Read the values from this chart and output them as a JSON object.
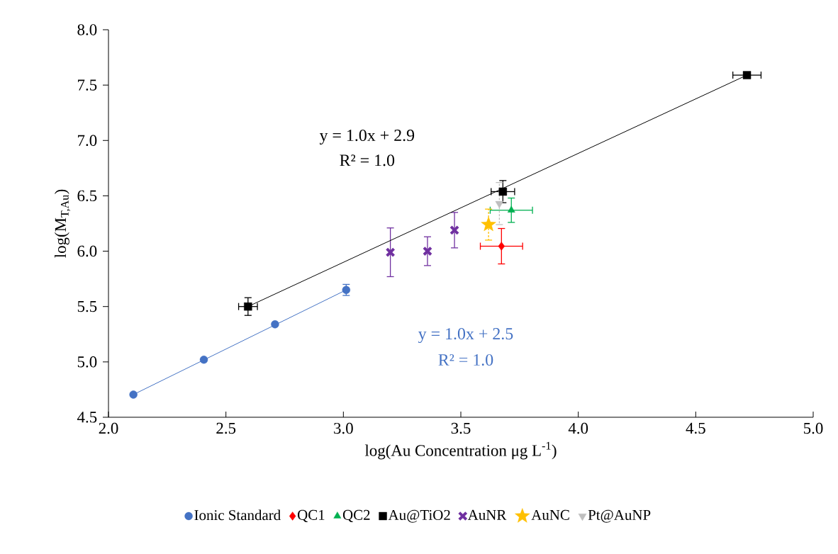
{
  "chart_data": {
    "type": "scatter",
    "xlabel": "log(Au Concentration μg L$^{-1}$)",
    "ylabel": "log(M$_{T,Au}$)",
    "xlim": [
      2.0,
      5.0
    ],
    "ylim": [
      4.5,
      8.0
    ],
    "xticks": [
      {
        "value": 2.0,
        "label": "2.0"
      },
      {
        "value": 2.5,
        "label": "2.5"
      },
      {
        "value": 3.0,
        "label": "3.0"
      },
      {
        "value": 3.5,
        "label": "3.5"
      },
      {
        "value": 4.0,
        "label": "4.0"
      },
      {
        "value": 4.5,
        "label": "4.5"
      },
      {
        "value": 5.0,
        "label": "5.0"
      }
    ],
    "yticks": [
      {
        "value": 4.5,
        "label": "4.5"
      },
      {
        "value": 5.0,
        "label": "5.0"
      },
      {
        "value": 5.5,
        "label": "5.5"
      },
      {
        "value": 6.0,
        "label": "6.0"
      },
      {
        "value": 6.5,
        "label": "6.5"
      },
      {
        "value": 7.0,
        "label": "7.0"
      },
      {
        "value": 7.5,
        "label": "7.5"
      },
      {
        "value": 8.0,
        "label": "8.0"
      }
    ],
    "grid": false,
    "legend": "bottom",
    "series": [
      {
        "name": "Ionic Standard",
        "color": "#4472c4",
        "marker": "circle",
        "x": [
          2.106,
          2.406,
          2.709,
          3.012
        ],
        "values": [
          4.705,
          5.02,
          5.34,
          5.65
        ],
        "errors": [
          null,
          null,
          null,
          0.05
        ]
      },
      {
        "name": "QC1",
        "color": "#ff0000",
        "marker": "diamond",
        "x": [
          3.673
        ],
        "values": [
          6.045
        ],
        "errors": [
          0.16
        ],
        "xerrors": [
          0.09
        ]
      },
      {
        "name": "QC2",
        "color": "#00b050",
        "marker": "triangle",
        "x": [
          3.715
        ],
        "values": [
          6.37
        ],
        "errors": [
          0.11
        ],
        "xerrors": [
          0.09
        ]
      },
      {
        "name": "Au@TiO2",
        "color": "#000000",
        "marker": "square",
        "x": [
          2.594,
          3.679,
          4.718
        ],
        "values": [
          5.5,
          6.538,
          7.59
        ],
        "errors": [
          0.08,
          0.1,
          null
        ],
        "xerrors": [
          0.04,
          0.05,
          0.06
        ]
      },
      {
        "name": "AuNR",
        "color": "#7030a0",
        "marker": "cross",
        "x": [
          3.2,
          3.358,
          3.473
        ],
        "values": [
          5.99,
          6.0,
          6.19
        ],
        "errors": [
          0.22,
          0.13,
          0.16
        ]
      },
      {
        "name": "AuNC",
        "color": "#ffc000",
        "marker": "star",
        "x": [
          3.618
        ],
        "values": [
          6.24
        ],
        "errors": [
          0.14
        ]
      },
      {
        "name": "Pt@AuNP",
        "color": "#bfbfbf",
        "marker": "triangle down",
        "x": [
          3.664
        ],
        "values": [
          6.43
        ],
        "errors": [
          0.19
        ]
      },
      {
        "type": "line",
        "color": "#4472c4",
        "marker": "none",
        "x": [
          2.106,
          3.012
        ],
        "values": [
          4.705,
          5.65
        ]
      },
      {
        "type": "line",
        "color": "#000000",
        "marker": "none",
        "x": [
          2.594,
          4.718
        ],
        "values": [
          5.5,
          7.59
        ]
      }
    ],
    "annotations": [
      "y = 1.0x + 2.9",
      "R² = 1.0",
      "y = 1.0x + 2.5",
      "R² = 1.0"
    ]
  }
}
